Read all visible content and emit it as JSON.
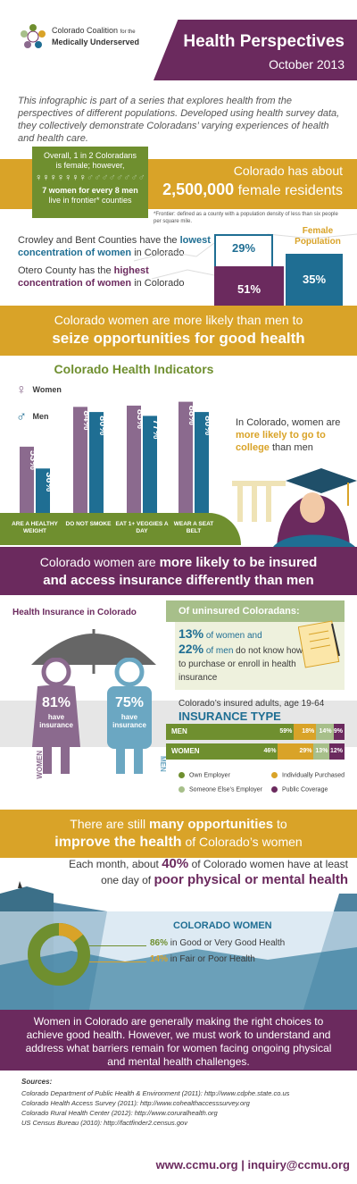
{
  "header": {
    "org_line1": "Colorado Coalition",
    "org_for": "for the",
    "org_line2": "Medically Underserved",
    "title": "Health Perspectives",
    "date": "October 2013"
  },
  "intro": "This infographic is part of a series that explores health from the perspectives of different populations. Developed using health survey data, they collectively demonstrate Coloradans’ varying experiences of health and health care.",
  "population": {
    "box_line1": "Overall, 1 in 2 Coloradans",
    "box_line2": "is female; however,",
    "box_bold": "7 women for every 8 men",
    "box_line3": "live in frontier* counties",
    "ribbon_line1": "Colorado has about",
    "ribbon_bold": "2,500,000",
    "ribbon_rest": "female residents",
    "footnote": "*Frontier: defined as a county with a population density of less than six people per square mile.",
    "crowley_a": "Crowley and Bent Counties have the",
    "crowley_b": "lowest concentration of women",
    "crowley_c": "in Colorado",
    "otero_a": "Otero County has the",
    "otero_b": "highest concentration of women",
    "otero_c": "in Colorado",
    "map_title_1": "Female",
    "map_title_2": "Population",
    "map_29": "29%",
    "map_35": "35%",
    "map_51": "51%"
  },
  "opportunities": {
    "line1": "Colorado women are more likely than men to",
    "line2": "seize opportunities for good health"
  },
  "indicators": {
    "title": "Colorado Health Indicators",
    "legend_women": "Women",
    "legend_men": "Men",
    "college_a": "In Colorado, women are",
    "college_b": "more likely to go to college",
    "college_c": "than men",
    "colors": {
      "women": "#8b6a8e",
      "men": "#1f6e93"
    }
  },
  "chart_data": {
    "type": "bar",
    "categories": [
      "ARE A HEALTHY WEIGHT",
      "DO NOT SMOKE",
      "EAT 1+ VEGGIES A DAY",
      "WEAR A SEAT BELT"
    ],
    "series": [
      {
        "name": "Women",
        "values": [
          53,
          84,
          85,
          88
        ],
        "labels": [
          "53%",
          "84%",
          "85%",
          "88%"
        ]
      },
      {
        "name": "Men",
        "values": [
          36,
          80,
          77,
          80
        ],
        "labels": [
          "36%",
          "80%",
          "77%",
          "80%"
        ]
      }
    ],
    "ylim": [
      0,
      100
    ]
  },
  "insurance": {
    "ribbon_a": "Colorado women are",
    "ribbon_b": "more likely to be insured",
    "ribbon_c": "and access insurance differently than men",
    "subtitle": "Health Insurance in Colorado",
    "women_pct": "81%",
    "men_pct": "75%",
    "have_ins": "have insurance",
    "women_label": "WOMEN",
    "men_label": "MEN",
    "uninsured_title": "Of uninsured Coloradans:",
    "uninsured_13": "13%",
    "of_women": "of women and",
    "uninsured_22": "22%",
    "of_men": "of men",
    "uninsured_rest": "do not know how to purchase or enroll in health insurance",
    "type_sub": "Colorado’s insured adults, age 19-64",
    "type_title": "INSURANCE TYPE",
    "rows": [
      {
        "label": "MEN",
        "segments": [
          {
            "value": 59,
            "label": "59%"
          },
          {
            "value": 18,
            "label": "18%"
          },
          {
            "value": 14,
            "label": "14%"
          },
          {
            "value": 9,
            "label": "9%"
          }
        ]
      },
      {
        "label": "WOMEN",
        "segments": [
          {
            "value": 46,
            "label": "46%"
          },
          {
            "value": 29,
            "label": "29%"
          },
          {
            "value": 13,
            "label": "13%"
          },
          {
            "value": 12,
            "label": "12%"
          }
        ]
      }
    ],
    "legend": [
      {
        "label": "Own Employer",
        "color": "#6f8f2f"
      },
      {
        "label": "Individually Purchased",
        "color": "#d9a328"
      },
      {
        "label": "Someone Else’s Employer",
        "color": "#a7bf8a"
      },
      {
        "label": "Public Coverage",
        "color": "#6b2a5e"
      }
    ]
  },
  "improve": {
    "line1_a": "There are still",
    "line1_b": "many opportunities",
    "line1_c": "to",
    "line2_a": "improve the health",
    "line2_b": "of Colorado’s women",
    "month_a": "Each month, about",
    "month_b": "40%",
    "month_c": "of Colorado women have at least one day of",
    "month_d": "poor physical or mental health",
    "women_title": "COLORADO WOMEN",
    "good_pct": "86%",
    "good_text": "in Good or Very Good Health",
    "fair_pct": "14%",
    "fair_text": "in Fair or Poor Health",
    "donut": {
      "good": 86,
      "fair": 14,
      "good_color": "#6f8f2f",
      "fair_color": "#d9a328"
    }
  },
  "closing": "Women in Colorado are generally making the right choices to achieve good health. However, we must work to understand and address what barriers remain for women facing ongoing physical and mental health challenges.",
  "sources": {
    "title": "Sources:",
    "items": [
      {
        "text": "Colorado Department of Public Health & Environment (2011):",
        "url": "http://www.cdphe.state.co.us"
      },
      {
        "text": "Colorado Health Access Survey (2011):",
        "url": "http://www.cohealthaccesssurvey.org"
      },
      {
        "text": "Colorado Rural Health Center (2012):",
        "url": "http://www.coruralhealth.org"
      },
      {
        "text": "US Census Bureau (2010):",
        "url": "http://factfinder2.census.gov"
      }
    ]
  },
  "footer": {
    "website": "www.ccmu.org",
    "sep": "|",
    "email": "inquiry@ccmu.org"
  }
}
